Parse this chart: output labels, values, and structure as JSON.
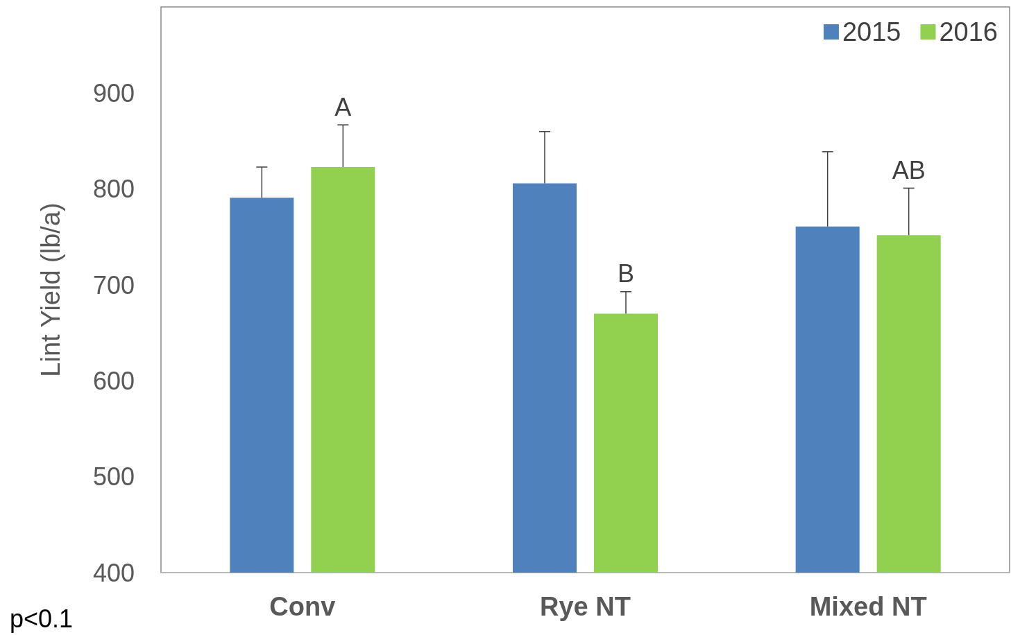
{
  "chart_data": {
    "type": "bar",
    "ylabel": "Lint Yield (lb/a)",
    "categories": [
      "Conv",
      "Rye NT",
      "Mixed NT"
    ],
    "series": [
      {
        "name": "2015",
        "color": "#4f81bd",
        "values": [
          791,
          806,
          761
        ],
        "errors": [
          [
            791,
            823
          ],
          [
            806,
            860
          ],
          [
            761,
            839
          ]
        ]
      },
      {
        "name": "2016",
        "color": "#92d050",
        "values": [
          823,
          670,
          752
        ],
        "errors": [
          [
            823,
            867
          ],
          [
            670,
            693
          ],
          [
            752,
            801
          ]
        ]
      }
    ],
    "ylim": [
      400,
      990
    ],
    "yticks": [
      400,
      500,
      600,
      700,
      800,
      900
    ],
    "grid": false,
    "legend": "top right",
    "annotations": [
      "A",
      "B",
      "AB",
      "p<0.1"
    ]
  }
}
